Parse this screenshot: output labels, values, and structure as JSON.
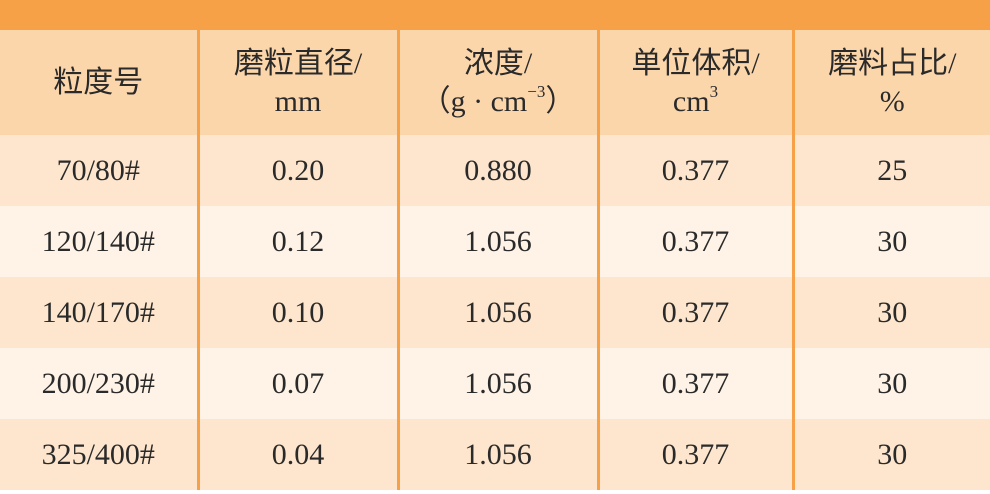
{
  "table": {
    "header": [
      [
        [
          "粒度号"
        ]
      ],
      [
        [
          "磨粒直径/"
        ],
        [
          "mm"
        ]
      ],
      [
        [
          "浓度/"
        ],
        [
          "（g · cm",
          {
            "sup": "−3"
          },
          "）"
        ]
      ],
      [
        [
          "单位体积/"
        ],
        [
          "cm",
          {
            "sup": "3"
          }
        ]
      ],
      [
        [
          "磨料占比/"
        ],
        [
          "%"
        ]
      ]
    ],
    "rows": [
      [
        "70/80#",
        "0.20",
        "0.880",
        "0.377",
        "25"
      ],
      [
        "120/140#",
        "0.12",
        "1.056",
        "0.377",
        "30"
      ],
      [
        "140/170#",
        "0.10",
        "1.056",
        "0.377",
        "30"
      ],
      [
        "200/230#",
        "0.07",
        "1.056",
        "0.377",
        "30"
      ],
      [
        "325/400#",
        "0.04",
        "1.056",
        "0.377",
        "30"
      ]
    ]
  }
}
